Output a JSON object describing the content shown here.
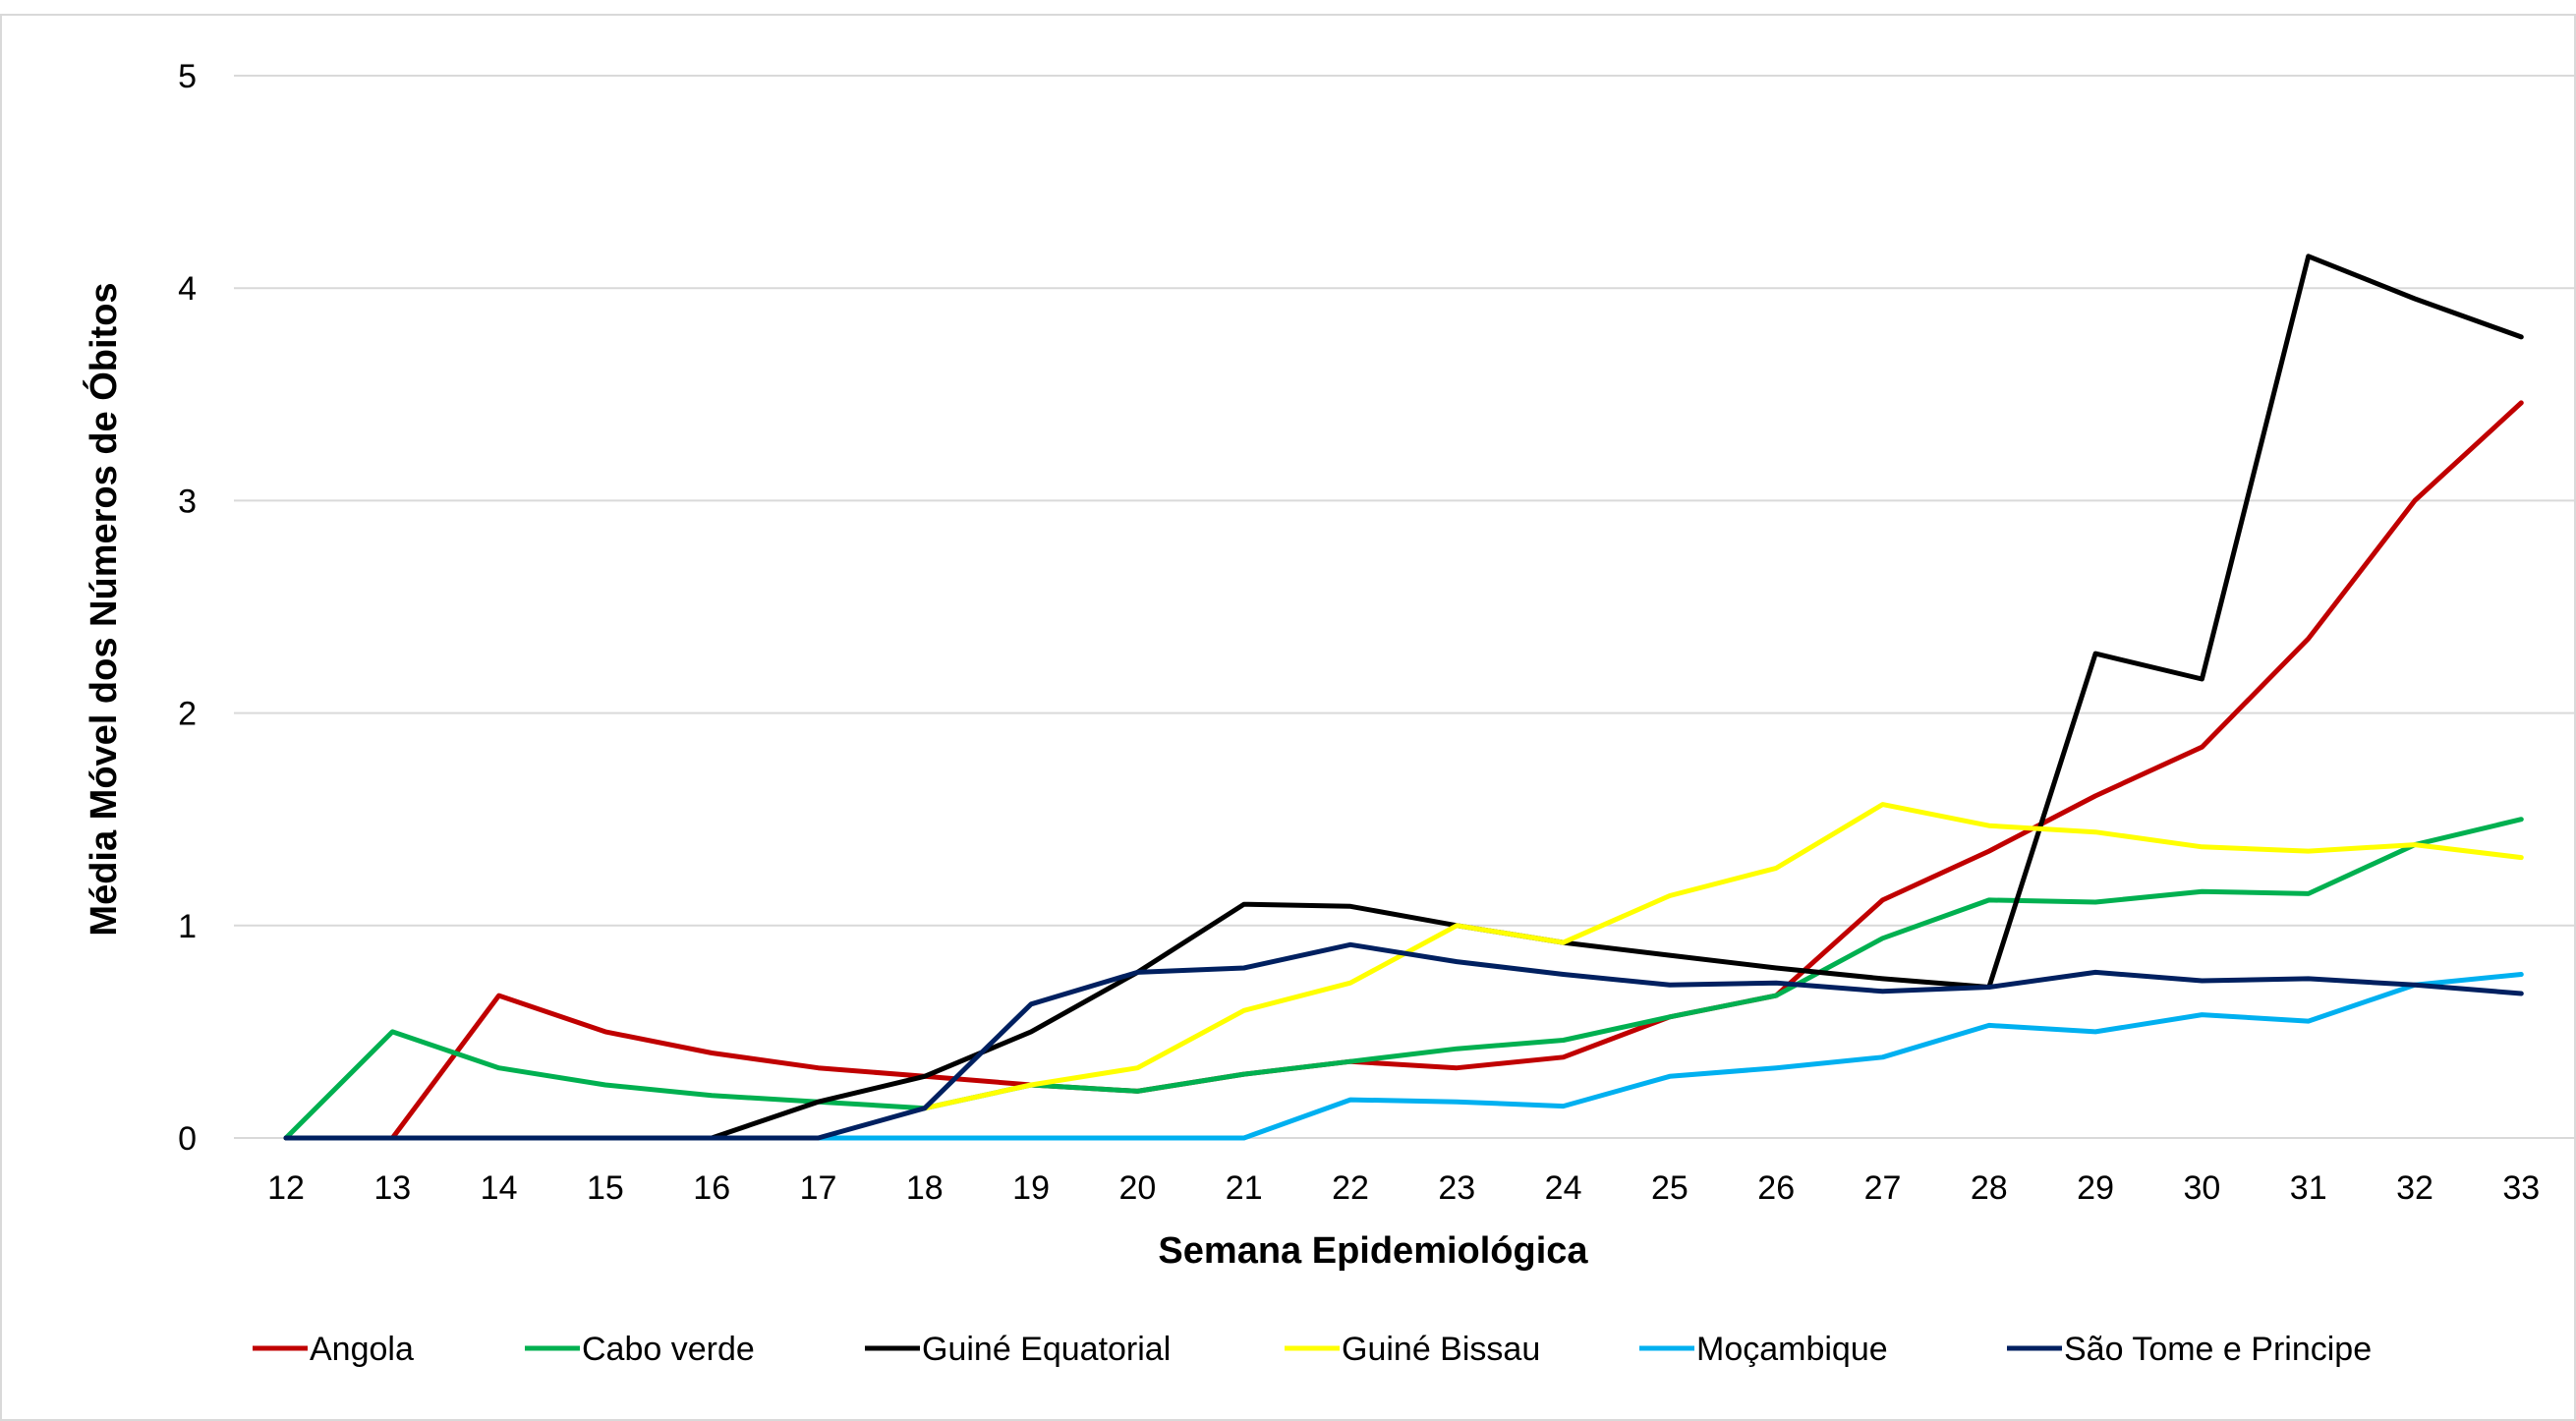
{
  "chart_data": {
    "type": "line",
    "xlabel": "Semana Epidemiológica",
    "ylabel": "Média Móvel dos Números de Óbitos",
    "ylim": [
      0,
      5
    ],
    "yticks": [
      "0",
      "1",
      "2",
      "3",
      "4",
      "5"
    ],
    "grid": true,
    "legend_position": "bottom",
    "categories": [
      "12",
      "13",
      "14",
      "15",
      "16",
      "17",
      "18",
      "19",
      "20",
      "21",
      "22",
      "23",
      "24",
      "25",
      "26",
      "27",
      "28",
      "29",
      "30",
      "31",
      "32",
      "33"
    ],
    "series": [
      {
        "name": "Angola",
        "color": "#c00000",
        "values": [
          null,
          0,
          0.67,
          0.5,
          0.4,
          0.33,
          0.29,
          0.25,
          0.22,
          0.3,
          0.36,
          0.33,
          0.38,
          0.57,
          0.67,
          1.12,
          1.35,
          1.61,
          1.84,
          2.35,
          3.0,
          3.46
        ]
      },
      {
        "name": "Cabo verde",
        "color": "#00b050",
        "values": [
          0,
          0.5,
          0.33,
          0.25,
          0.2,
          0.17,
          0.14,
          0.25,
          0.22,
          0.3,
          0.36,
          0.42,
          0.46,
          0.57,
          0.67,
          0.94,
          1.12,
          1.11,
          1.16,
          1.15,
          1.38,
          1.5
        ]
      },
      {
        "name": "Guiné Equatorial",
        "color": "#000000",
        "values": [
          0,
          0,
          0,
          0,
          0,
          0.17,
          0.29,
          0.5,
          0.78,
          1.1,
          1.09,
          1.0,
          0.92,
          0.86,
          0.8,
          0.75,
          0.71,
          2.28,
          2.16,
          4.15,
          3.95,
          3.77
        ]
      },
      {
        "name": "Guiné Bissau",
        "color": "#ffff00",
        "values": [
          null,
          null,
          null,
          null,
          null,
          null,
          0.14,
          0.25,
          0.33,
          0.6,
          0.73,
          1.0,
          0.92,
          1.14,
          1.27,
          1.57,
          1.47,
          1.44,
          1.37,
          1.35,
          1.38,
          1.32
        ]
      },
      {
        "name": "Moçambique",
        "color": "#00b0f0",
        "values": [
          null,
          null,
          null,
          null,
          null,
          0,
          0,
          0,
          0,
          0,
          0.18,
          0.17,
          0.15,
          0.29,
          0.33,
          0.38,
          0.53,
          0.5,
          0.58,
          0.55,
          0.72,
          0.77
        ]
      },
      {
        "name": "São Tome e Principe",
        "color": "#002060",
        "values": [
          0,
          0,
          0,
          0,
          0,
          0,
          0.14,
          0.63,
          0.78,
          0.8,
          0.91,
          0.83,
          0.77,
          0.72,
          0.73,
          0.69,
          0.71,
          0.78,
          0.74,
          0.75,
          0.72,
          0.68
        ]
      }
    ]
  }
}
